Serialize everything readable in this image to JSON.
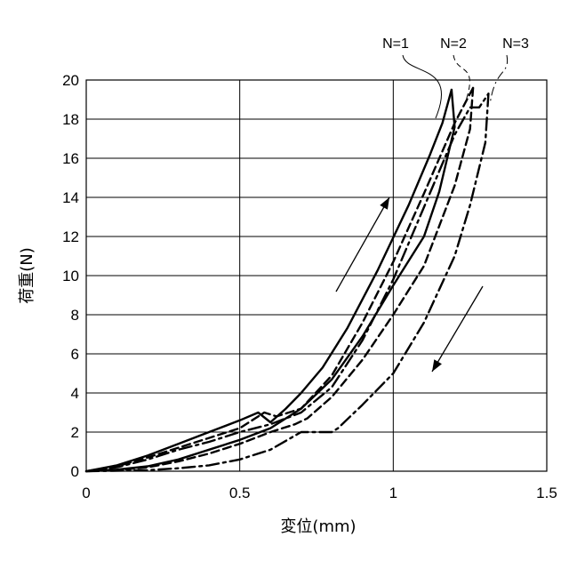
{
  "chart_data": {
    "type": "line",
    "title": "",
    "xlabel": "変位(mm)",
    "ylabel": "荷重(N)",
    "xlim": [
      0,
      1.5
    ],
    "ylim": [
      0,
      20
    ],
    "x_ticks": [
      0,
      0.5,
      1,
      1.5
    ],
    "x_tick_labels": [
      "0",
      "0.5",
      "1",
      "1.5"
    ],
    "y_ticks": [
      0,
      2,
      4,
      6,
      8,
      10,
      12,
      14,
      16,
      18,
      20
    ],
    "y_tick_labels": [
      "0",
      "2",
      "4",
      "6",
      "8",
      "10",
      "12",
      "14",
      "16",
      "18",
      "20"
    ],
    "grid": true,
    "legend": "callouts-top-right",
    "series": [
      {
        "name": "N=1",
        "line_style": "solid",
        "loading": [
          [
            0,
            0
          ],
          [
            0.1,
            0.3
          ],
          [
            0.2,
            0.8
          ],
          [
            0.3,
            1.4
          ],
          [
            0.4,
            2.0
          ],
          [
            0.5,
            2.6
          ],
          [
            0.56,
            3.0
          ],
          [
            0.6,
            2.5
          ],
          [
            0.65,
            3.2
          ],
          [
            0.7,
            4.0
          ],
          [
            0.77,
            5.3
          ],
          [
            0.85,
            7.3
          ],
          [
            0.95,
            10.3
          ],
          [
            1.05,
            13.6
          ],
          [
            1.12,
            16.2
          ],
          [
            1.16,
            17.8
          ],
          [
            1.19,
            19.5
          ]
        ],
        "unloading": [
          [
            1.19,
            19.5
          ],
          [
            1.2,
            17.6
          ],
          [
            1.15,
            14.3
          ],
          [
            1.1,
            12.0
          ],
          [
            1.0,
            9.5
          ],
          [
            0.9,
            6.9
          ],
          [
            0.8,
            4.7
          ],
          [
            0.7,
            3.2
          ],
          [
            0.62,
            2.4
          ],
          [
            0.6,
            2.2
          ],
          [
            0.5,
            1.6
          ],
          [
            0.4,
            1.1
          ],
          [
            0.3,
            0.6
          ],
          [
            0.2,
            0.25
          ],
          [
            0.1,
            0.08
          ],
          [
            0,
            0
          ]
        ]
      },
      {
        "name": "N=2",
        "line_style": "dashed",
        "loading": [
          [
            0,
            0
          ],
          [
            0.1,
            0.25
          ],
          [
            0.2,
            0.7
          ],
          [
            0.3,
            1.2
          ],
          [
            0.4,
            1.7
          ],
          [
            0.5,
            2.2
          ],
          [
            0.58,
            3.0
          ],
          [
            0.62,
            2.8
          ],
          [
            0.7,
            3.2
          ],
          [
            0.8,
            4.9
          ],
          [
            0.9,
            7.6
          ],
          [
            1.0,
            10.7
          ],
          [
            1.1,
            14.2
          ],
          [
            1.2,
            17.8
          ],
          [
            1.26,
            19.6
          ]
        ],
        "unloading": [
          [
            1.26,
            19.6
          ],
          [
            1.25,
            17.5
          ],
          [
            1.2,
            14.6
          ],
          [
            1.1,
            10.5
          ],
          [
            1.0,
            8.0
          ],
          [
            0.9,
            5.7
          ],
          [
            0.8,
            3.8
          ],
          [
            0.72,
            2.7
          ],
          [
            0.68,
            2.4
          ],
          [
            0.6,
            2.0
          ],
          [
            0.5,
            1.4
          ],
          [
            0.4,
            0.9
          ],
          [
            0.3,
            0.5
          ],
          [
            0.2,
            0.2
          ],
          [
            0.1,
            0.05
          ],
          [
            0,
            0
          ]
        ]
      },
      {
        "name": "N=3",
        "line_style": "dash-dot",
        "loading": [
          [
            0,
            0
          ],
          [
            0.1,
            0.2
          ],
          [
            0.2,
            0.6
          ],
          [
            0.3,
            1.1
          ],
          [
            0.4,
            1.5
          ],
          [
            0.5,
            2.0
          ],
          [
            0.6,
            2.4
          ],
          [
            0.7,
            3.0
          ],
          [
            0.8,
            4.3
          ],
          [
            0.9,
            6.7
          ],
          [
            1.0,
            9.8
          ],
          [
            1.1,
            13.5
          ],
          [
            1.2,
            17.2
          ],
          [
            1.25,
            18.6
          ],
          [
            1.28,
            18.6
          ],
          [
            1.31,
            19.3
          ]
        ],
        "unloading": [
          [
            1.31,
            19.3
          ],
          [
            1.3,
            16.8
          ],
          [
            1.25,
            13.6
          ],
          [
            1.2,
            11.0
          ],
          [
            1.1,
            7.6
          ],
          [
            1.0,
            5.0
          ],
          [
            0.9,
            3.4
          ],
          [
            0.82,
            2.2
          ],
          [
            0.8,
            2.0
          ],
          [
            0.7,
            2.0
          ],
          [
            0.6,
            1.1
          ],
          [
            0.5,
            0.6
          ],
          [
            0.4,
            0.3
          ],
          [
            0.3,
            0.15
          ],
          [
            0.2,
            0.05
          ],
          [
            0,
            0
          ]
        ]
      }
    ],
    "annotations": [
      "loading-arrow-up",
      "unloading-arrow-down"
    ]
  }
}
